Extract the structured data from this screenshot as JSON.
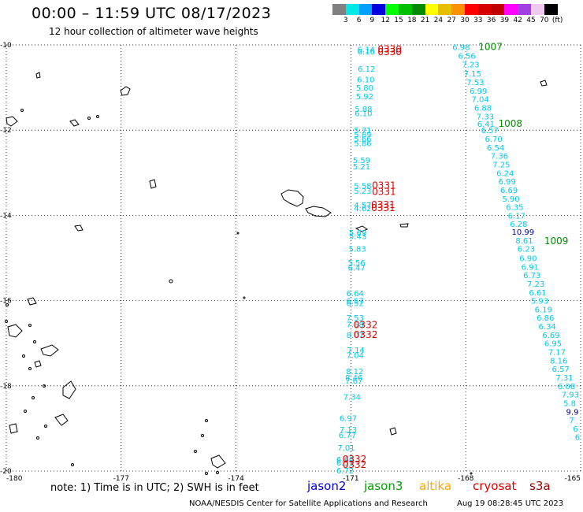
{
  "header": {
    "title": "00:00 – 11:59 UTC 08/17/2023",
    "subtitle": "12 hour collection of altimeter wave heights"
  },
  "colorbar": {
    "colors": [
      "#808080",
      "#00e8e8",
      "#00a0ff",
      "#0000e0",
      "#00ff00",
      "#00c000",
      "#008c00",
      "#ffff00",
      "#e6c000",
      "#ff9000",
      "#ff0000",
      "#d60000",
      "#c00000",
      "#ff00ff",
      "#a040e0",
      "#f0c8f0",
      "#000000"
    ],
    "labels": [
      "3",
      "6",
      "9",
      "12",
      "15",
      "18",
      "21",
      "24",
      "27",
      "30",
      "33",
      "36",
      "39",
      "42",
      "45",
      "70",
      "(ft)"
    ]
  },
  "axes": {
    "x_ticks": [
      "-180",
      "-177",
      "-174",
      "-171",
      "-168",
      "-165"
    ],
    "y_ticks": [
      "-10",
      "-12",
      "-14",
      "-16",
      "-18",
      "-20"
    ]
  },
  "west_track": [
    {
      "lat": -10.1,
      "lon": -170.83,
      "label": "6.14"
    },
    {
      "lat": -10.15,
      "lon": -170.83,
      "label": "6.16"
    },
    {
      "lat": -10.55,
      "lon": -170.82,
      "label": "6.12"
    },
    {
      "lat": -10.8,
      "lon": -170.84,
      "label": "6.10"
    },
    {
      "lat": -11.0,
      "lon": -170.87,
      "label": "5.80"
    },
    {
      "lat": -11.2,
      "lon": -170.87,
      "label": "5.92"
    },
    {
      "lat": -11.5,
      "lon": -170.9,
      "label": "5.88"
    },
    {
      "lat": -11.6,
      "lon": -170.9,
      "label": "6.10"
    },
    {
      "lat": -12.0,
      "lon": -170.92,
      "label": "5.71"
    },
    {
      "lat": -12.1,
      "lon": -170.92,
      "label": "5.89"
    },
    {
      "lat": -12.2,
      "lon": -170.92,
      "label": "5.66"
    },
    {
      "lat": -12.3,
      "lon": -170.92,
      "label": "5.86"
    },
    {
      "lat": -12.7,
      "lon": -170.95,
      "label": "5.59"
    },
    {
      "lat": -12.85,
      "lon": -170.95,
      "label": "5.21"
    },
    {
      "lat": -13.3,
      "lon": -170.92,
      "label": "5.58"
    },
    {
      "lat": -13.42,
      "lon": -170.92,
      "label": "5.23"
    },
    {
      "lat": -13.75,
      "lon": -170.92,
      "label": "4.57"
    },
    {
      "lat": -13.83,
      "lon": -170.92,
      "label": "4.62"
    },
    {
      "lat": -14.4,
      "lon": -171.05,
      "label": "5.69"
    },
    {
      "lat": -14.48,
      "lon": -171.05,
      "label": "5.43"
    },
    {
      "lat": -14.78,
      "lon": -171.06,
      "label": "5.83"
    },
    {
      "lat": -15.1,
      "lon": -171.08,
      "label": "5.56"
    },
    {
      "lat": -15.22,
      "lon": -171.08,
      "label": "6.47"
    },
    {
      "lat": -15.82,
      "lon": -171.12,
      "label": "6.64"
    },
    {
      "lat": -16.0,
      "lon": -171.12,
      "label": "6.57"
    },
    {
      "lat": -16.05,
      "lon": -171.12,
      "label": "6.52"
    },
    {
      "lat": -16.4,
      "lon": -171.12,
      "label": "7.53"
    },
    {
      "lat": -16.55,
      "lon": -171.12,
      "label": "7.58"
    },
    {
      "lat": -16.8,
      "lon": -171.12,
      "label": "8.07"
    },
    {
      "lat": -17.15,
      "lon": -171.1,
      "label": "7.14"
    },
    {
      "lat": -17.27,
      "lon": -171.12,
      "label": "7.04"
    },
    {
      "lat": -17.65,
      "lon": -171.13,
      "label": "8.12"
    },
    {
      "lat": -17.8,
      "lon": -171.15,
      "label": "8.46"
    },
    {
      "lat": -17.87,
      "lon": -171.15,
      "label": "7.67"
    },
    {
      "lat": -18.25,
      "lon": -171.2,
      "label": "7.34"
    },
    {
      "lat": -18.75,
      "lon": -171.3,
      "label": "6.97"
    },
    {
      "lat": -19.02,
      "lon": -171.3,
      "label": "7.13"
    },
    {
      "lat": -19.15,
      "lon": -171.32,
      "label": "6.77"
    },
    {
      "lat": -19.45,
      "lon": -171.35,
      "label": "7.01"
    },
    {
      "lat": -19.72,
      "lon": -171.38,
      "label": "6.60"
    },
    {
      "lat": -19.8,
      "lon": -171.38,
      "label": "6.53"
    },
    {
      "lat": -19.98,
      "lon": -171.38,
      "label": "6.72"
    }
  ],
  "east_track": [
    {
      "lat": -10.05,
      "lon": -168.35,
      "label": "6.98"
    },
    {
      "lat": -10.25,
      "lon": -168.2,
      "label": "6.56"
    },
    {
      "lat": -10.45,
      "lon": -168.1,
      "label": "7.23"
    },
    {
      "lat": -10.67,
      "lon": -168.05,
      "label": "7.15"
    },
    {
      "lat": -10.87,
      "lon": -167.98,
      "label": "7.53"
    },
    {
      "lat": -11.07,
      "lon": -167.9,
      "label": "6.99"
    },
    {
      "lat": -11.27,
      "lon": -167.85,
      "label": "7.04"
    },
    {
      "lat": -11.47,
      "lon": -167.78,
      "label": "6.88"
    },
    {
      "lat": -11.67,
      "lon": -167.72,
      "label": "7.33"
    },
    {
      "lat": -11.85,
      "lon": -167.7,
      "label": "6.41"
    },
    {
      "lat": -12.0,
      "lon": -167.6,
      "label": "6.57"
    },
    {
      "lat": -12.2,
      "lon": -167.5,
      "label": "6.70"
    },
    {
      "lat": -12.4,
      "lon": -167.45,
      "label": "6.54"
    },
    {
      "lat": -12.6,
      "lon": -167.35,
      "label": "7.36"
    },
    {
      "lat": -12.8,
      "lon": -167.3,
      "label": "7.25"
    },
    {
      "lat": -13.0,
      "lon": -167.2,
      "label": "6.24"
    },
    {
      "lat": -13.2,
      "lon": -167.15,
      "label": "6.99"
    },
    {
      "lat": -13.4,
      "lon": -167.1,
      "label": "6.69"
    },
    {
      "lat": -13.6,
      "lon": -167.05,
      "label": "5.90"
    },
    {
      "lat": -13.8,
      "lon": -166.95,
      "label": "6.35"
    },
    {
      "lat": -14.0,
      "lon": -166.9,
      "label": "6.17"
    },
    {
      "lat": -14.2,
      "lon": -166.85,
      "label": "6.28"
    },
    {
      "lat": -14.38,
      "lon": -166.8,
      "label": "10.99",
      "color": "#00008b"
    },
    {
      "lat": -14.58,
      "lon": -166.7,
      "label": "8.61"
    },
    {
      "lat": -14.78,
      "lon": -166.65,
      "label": "6.23"
    },
    {
      "lat": -15.0,
      "lon": -166.6,
      "label": "6.90"
    },
    {
      "lat": -15.2,
      "lon": -166.55,
      "label": "6.91"
    },
    {
      "lat": -15.4,
      "lon": -166.5,
      "label": "6.73"
    },
    {
      "lat": -15.6,
      "lon": -166.4,
      "label": "7.23"
    },
    {
      "lat": -15.8,
      "lon": -166.35,
      "label": "6.61"
    },
    {
      "lat": -16.0,
      "lon": -166.3,
      "label": "5.93"
    },
    {
      "lat": -16.2,
      "lon": -166.2,
      "label": "6.19"
    },
    {
      "lat": -16.4,
      "lon": -166.15,
      "label": "6.86"
    },
    {
      "lat": -16.6,
      "lon": -166.1,
      "label": "6.34"
    },
    {
      "lat": -16.8,
      "lon": -166.0,
      "label": "6.69"
    },
    {
      "lat": -17.0,
      "lon": -165.95,
      "label": "6.95"
    },
    {
      "lat": -17.2,
      "lon": -165.85,
      "label": "7.17"
    },
    {
      "lat": -17.4,
      "lon": -165.8,
      "label": "8.16"
    },
    {
      "lat": -17.6,
      "lon": -165.75,
      "label": "6.57"
    },
    {
      "lat": -17.8,
      "lon": -165.65,
      "label": "7.31"
    },
    {
      "lat": -18.0,
      "lon": -165.6,
      "label": "6.08"
    },
    {
      "lat": -18.2,
      "lon": -165.5,
      "label": "7.93"
    },
    {
      "lat": -18.4,
      "lon": -165.45,
      "label": "5.8"
    },
    {
      "lat": -18.6,
      "lon": -165.38,
      "label": "9.9",
      "color": "#00008b"
    },
    {
      "lat": -18.8,
      "lon": -165.3,
      "label": "7"
    },
    {
      "lat": -19.0,
      "lon": -165.2,
      "label": "6"
    },
    {
      "lat": -19.2,
      "lon": -165.15,
      "label": "6"
    }
  ],
  "red_times": [
    {
      "lat": -10.1,
      "lon": -170.3,
      "label": "0330"
    },
    {
      "lat": -10.17,
      "lon": -170.3,
      "label": "0330"
    },
    {
      "lat": -13.3,
      "lon": -170.45,
      "label": "0331"
    },
    {
      "lat": -13.45,
      "lon": -170.45,
      "label": "0331"
    },
    {
      "lat": -13.75,
      "lon": -170.47,
      "label": "0331"
    },
    {
      "lat": -13.83,
      "lon": -170.47,
      "label": "0331"
    },
    {
      "lat": -16.57,
      "lon": -170.93,
      "label": "0332"
    },
    {
      "lat": -16.8,
      "lon": -170.93,
      "label": "0332"
    },
    {
      "lat": -19.72,
      "lon": -171.22,
      "label": "0332"
    },
    {
      "lat": -19.85,
      "lon": -171.22,
      "label": "0332"
    }
  ],
  "green_times": [
    {
      "lat": -10.05,
      "lon": -167.67,
      "label": "1007"
    },
    {
      "lat": -11.85,
      "lon": -167.15,
      "label": "1008"
    },
    {
      "lat": -14.6,
      "lon": -165.95,
      "label": "1009"
    }
  ],
  "footer": {
    "note": "note: 1) Time is in UTC; 2) SWH is in feet",
    "satellites": [
      {
        "label": "jason2",
        "color": "#0000e0"
      },
      {
        "label": "jason3",
        "color": "#00a000"
      },
      {
        "label": "altika",
        "color": "#ffa500"
      },
      {
        "label": "cryosat",
        "color": "#e00000"
      },
      {
        "label": "s3a",
        "color": "#a00000"
      }
    ],
    "credit": "NOAA/NESDIS Center for Satellite Applications and Research",
    "timestamp": "Aug 19 08:28:45 UTC 2023"
  },
  "colors": {
    "track": "#00c8e8",
    "pass_time_red": "#e00000",
    "pass_time_green": "#008c00"
  }
}
